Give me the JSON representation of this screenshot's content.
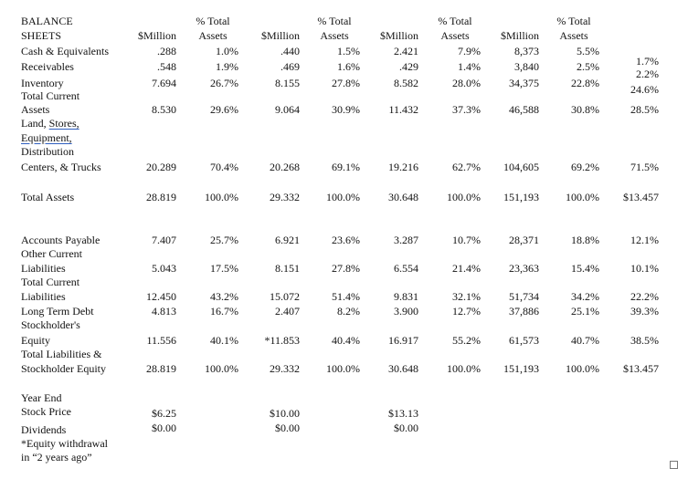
{
  "header": {
    "title_line1": "BALANCE",
    "title_line2": "SHEETS",
    "col_million": "$Million",
    "col_pct_line1": "% Total",
    "col_pct_line2": "Assets"
  },
  "rows": {
    "cash": {
      "label": "Cash & Equivalents",
      "values": [
        ".288",
        "1.0%",
        ".440",
        "1.5%",
        "2.421",
        "7.9%",
        "8,373",
        "5.5%",
        "1.7%"
      ]
    },
    "receivables": {
      "label": "Receivables",
      "values": [
        ".548",
        "1.9%",
        ".469",
        "1.6%",
        ".429",
        "1.4%",
        "3,840",
        "2.5%",
        "2.2%"
      ]
    },
    "inventory": {
      "label": "Inventory",
      "values": [
        "7.694",
        "26.7%",
        "8.155",
        "27.8%",
        "8.582",
        "28.0%",
        "34,375",
        "22.8%",
        "24.6%"
      ]
    },
    "total_current_assets": {
      "label_line1": "Total Current",
      "label_line2": "Assets",
      "values": [
        "8.530",
        "29.6%",
        "9.064",
        "30.9%",
        "11.432",
        "37.3%",
        "46,588",
        "30.8%",
        "28.5%"
      ]
    },
    "land": {
      "label_line1a": "Land, ",
      "label_line1b": "Stores,",
      "label_line2": "Equipment,",
      "label_line3": "Distribution",
      "label_line4": "Centers, & Trucks",
      "values": [
        "20.289",
        "70.4%",
        "20.268",
        "69.1%",
        "19.216",
        "62.7%",
        "104,605",
        "69.2%",
        "71.5%"
      ]
    },
    "total_assets": {
      "label": "Total Assets",
      "values": [
        "28.819",
        "100.0%",
        "29.332",
        "100.0%",
        "30.648",
        "100.0%",
        "151,193",
        "100.0%",
        "$13.457"
      ]
    },
    "accounts_payable": {
      "label": "Accounts Payable",
      "values": [
        "7.407",
        "25.7%",
        "6.921",
        "23.6%",
        "3.287",
        "10.7%",
        "28,371",
        "18.8%",
        "12.1%"
      ]
    },
    "other_current_liabilities": {
      "label_line1": "Other Current",
      "label_line2": "Liabilities",
      "values": [
        "5.043",
        "17.5%",
        "8.151",
        "27.8%",
        "6.554",
        "21.4%",
        "23,363",
        "15.4%",
        "10.1%"
      ]
    },
    "total_current_liabilities": {
      "label_line1": "Total Current",
      "label_line2": "Liabilities",
      "values": [
        "12.450",
        "43.2%",
        "15.072",
        "51.4%",
        "9.831",
        "32.1%",
        "51,734",
        "34.2%",
        "22.2%"
      ]
    },
    "long_term_debt": {
      "label": "Long Term Debt",
      "values": [
        "4.813",
        "16.7%",
        "2.407",
        "8.2%",
        "3.900",
        "12.7%",
        "37,886",
        "25.1%",
        "39.3%"
      ]
    },
    "equity": {
      "label_line1": "Stockholder's",
      "label_line2": "Equity",
      "values": [
        "11.556",
        "40.1%",
        "*11.853",
        "40.4%",
        "16.917",
        "55.2%",
        "61,573",
        "40.7%",
        "38.5%"
      ]
    },
    "total_liabilities": {
      "label_line1": "Total Liabilities &",
      "label_line2": "Stockholder Equity",
      "values": [
        "28.819",
        "100.0%",
        "29.332",
        "100.0%",
        "30.648",
        "100.0%",
        "151,193",
        "100.0%",
        "$13.457"
      ]
    }
  },
  "footer": {
    "year_end": "Year End",
    "stock_price_label": "Stock Price",
    "stock_prices": [
      "$6.25",
      "$10.00",
      "$13.13"
    ],
    "dividends_label": "Dividends",
    "dividends": [
      "$0.00",
      "$0.00",
      "$0.00"
    ],
    "note_line1": "*Equity withdrawal",
    "note_line2": "in “2 years ago”"
  }
}
